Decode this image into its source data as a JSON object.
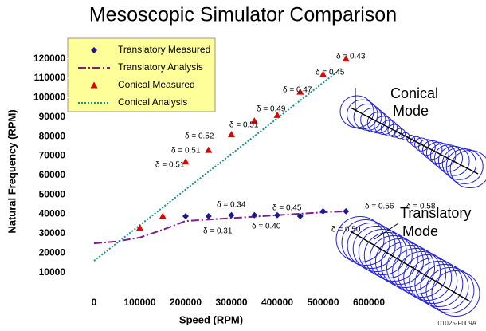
{
  "chart_data": {
    "type": "line",
    "title": "Mesoscopic Simulator Comparison",
    "x_label": "Speed (RPM)",
    "y_label": "Natural Frequency (RPM)",
    "xlim": [
      -50000,
      650000
    ],
    "ylim": [
      0,
      125000
    ],
    "xticks": [
      0,
      100000,
      200000,
      300000,
      400000,
      500000,
      600000
    ],
    "yticks": [
      10000,
      20000,
      30000,
      40000,
      50000,
      60000,
      70000,
      80000,
      90000,
      100000,
      110000,
      120000
    ],
    "series": [
      {
        "name": "Translatory Measured",
        "color": "#1a1a8c",
        "marker": "diamond",
        "x": [
          200000,
          250000,
          300000,
          350000,
          400000,
          450000,
          500000,
          550000
        ],
        "values": [
          39000,
          39000,
          39500,
          39500,
          39500,
          39000,
          41500,
          41500
        ]
      },
      {
        "name": "Translatory Analysis",
        "color": "#7a1f8c",
        "marker": "dashdot",
        "x": [
          0,
          50000,
          100000,
          150000,
          200000,
          300000,
          400000,
          500000,
          550000
        ],
        "values": [
          25000,
          26000,
          28000,
          32000,
          36500,
          38000,
          39500,
          41000,
          41500
        ]
      },
      {
        "name": "Conical Measured",
        "color": "#e00000",
        "marker": "triangle",
        "x": [
          100000,
          150000,
          200000,
          250000,
          300000,
          350000,
          400000,
          450000,
          500000,
          550000
        ],
        "values": [
          33000,
          39000,
          67000,
          73000,
          81000,
          88000,
          91000,
          103000,
          112000,
          120000
        ]
      },
      {
        "name": "Conical Analysis",
        "color": "#1a9090",
        "marker": "dotted",
        "x": [
          0,
          540000
        ],
        "values": [
          16000,
          115000
        ]
      }
    ],
    "annotations": [
      "δ = 0.51",
      "δ = 0.51",
      "δ = 0.52",
      "δ = 0.51",
      "δ = 0.49",
      "δ = 0.47",
      "δ = 0.45",
      "δ = 0.43",
      "δ = 0.34",
      "δ = 0.31",
      "δ = 0.45",
      "δ = 0.40",
      "δ = 0.50",
      "δ = 0.56",
      "δ = 0.58"
    ],
    "conical_mode_label": [
      "Conical",
      "Mode"
    ],
    "translatory_mode_label": [
      "Translatory",
      "Mode"
    ],
    "figure_id": "01025-F009A"
  }
}
